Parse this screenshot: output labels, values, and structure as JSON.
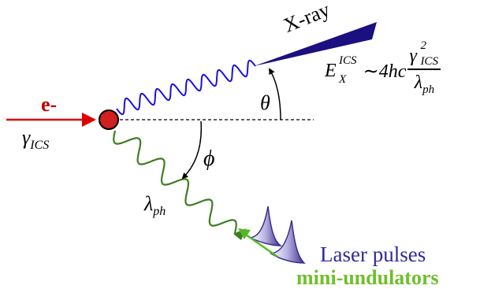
{
  "labels": {
    "electron": "e-",
    "electron_gamma": "γ",
    "electron_gamma_sub": "ICS",
    "xray": "X-ray",
    "theta": "θ",
    "phi": "ϕ",
    "lambda": "λ",
    "lambda_sub": "ph",
    "laser_pulses": "Laser pulses",
    "mini_undulators": "mini-undulators"
  },
  "formula": {
    "lhs": "E",
    "lhs_sub": "X",
    "lhs_sup": "ICS",
    "relation": "∼4hc",
    "numerator": "γ",
    "numerator_sub": "ICS",
    "numerator_sup": "2",
    "denominator": "λ",
    "denominator_sub": "ph"
  },
  "colors": {
    "electron": "#c00000",
    "electron_arrow": "#e00000",
    "xray_wave": "#1a10e0",
    "xray_beam": "#1a1080",
    "laser_wave": "#3e7d1f",
    "laser_pulse": "#3b2f8a",
    "laser_label": "#2e2a9a",
    "undulator_label": "#6fbf2a",
    "mini_arrow": "#55b82a"
  }
}
